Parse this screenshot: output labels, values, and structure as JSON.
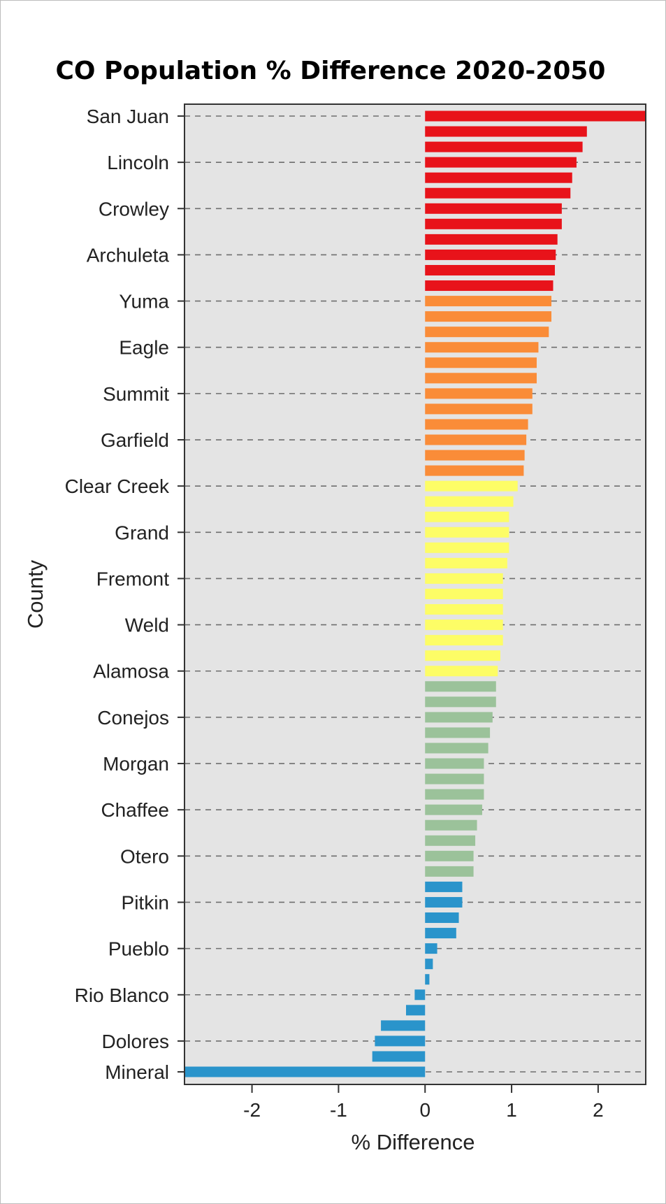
{
  "chart_data": {
    "type": "bar",
    "orientation": "horizontal",
    "title": "CO Population % Difference 2020-2050",
    "xlabel": "% Difference",
    "ylabel": "County",
    "xlim": [
      -2.78,
      2.55
    ],
    "xticks": [
      -2,
      -1,
      0,
      1,
      2
    ],
    "grid": "horizontal dashed",
    "legend": "none",
    "labeled_categories": [
      "San Juan",
      "Lincoln",
      "Crowley",
      "Archuleta",
      "Yuma",
      "Eagle",
      "Summit",
      "Garfield",
      "Clear Creek",
      "Grand",
      "Fremont",
      "Weld",
      "Alamosa",
      "Conejos",
      "Morgan",
      "Chaffee",
      "Otero",
      "Pitkin",
      "Pueblo",
      "Rio Blanco",
      "Dolores",
      "Mineral"
    ],
    "label_every": 3,
    "values": [
      2.55,
      1.87,
      1.82,
      1.75,
      1.7,
      1.68,
      1.58,
      1.58,
      1.53,
      1.51,
      1.5,
      1.48,
      1.46,
      1.46,
      1.43,
      1.31,
      1.29,
      1.29,
      1.24,
      1.24,
      1.19,
      1.17,
      1.15,
      1.14,
      1.07,
      1.02,
      0.97,
      0.97,
      0.97,
      0.95,
      0.9,
      0.9,
      0.9,
      0.9,
      0.9,
      0.87,
      0.84,
      0.82,
      0.82,
      0.78,
      0.75,
      0.73,
      0.68,
      0.68,
      0.68,
      0.66,
      0.6,
      0.58,
      0.56,
      0.56,
      0.43,
      0.43,
      0.39,
      0.36,
      0.14,
      0.09,
      0.05,
      -0.12,
      -0.22,
      -0.51,
      -0.58,
      -0.61,
      -2.78
    ],
    "color_groups": [
      {
        "count": 12,
        "color": "#e8131a"
      },
      {
        "count": 12,
        "color": "#fa8c38"
      },
      {
        "count": 13,
        "color": "#fdfd66"
      },
      {
        "count": 13,
        "color": "#9bc29a"
      },
      {
        "count": 13,
        "color": "#2a94cb"
      }
    ],
    "colors": {
      "panel": "#e4e4e4",
      "grid": "#6e6e6e",
      "border": "#333333"
    }
  }
}
